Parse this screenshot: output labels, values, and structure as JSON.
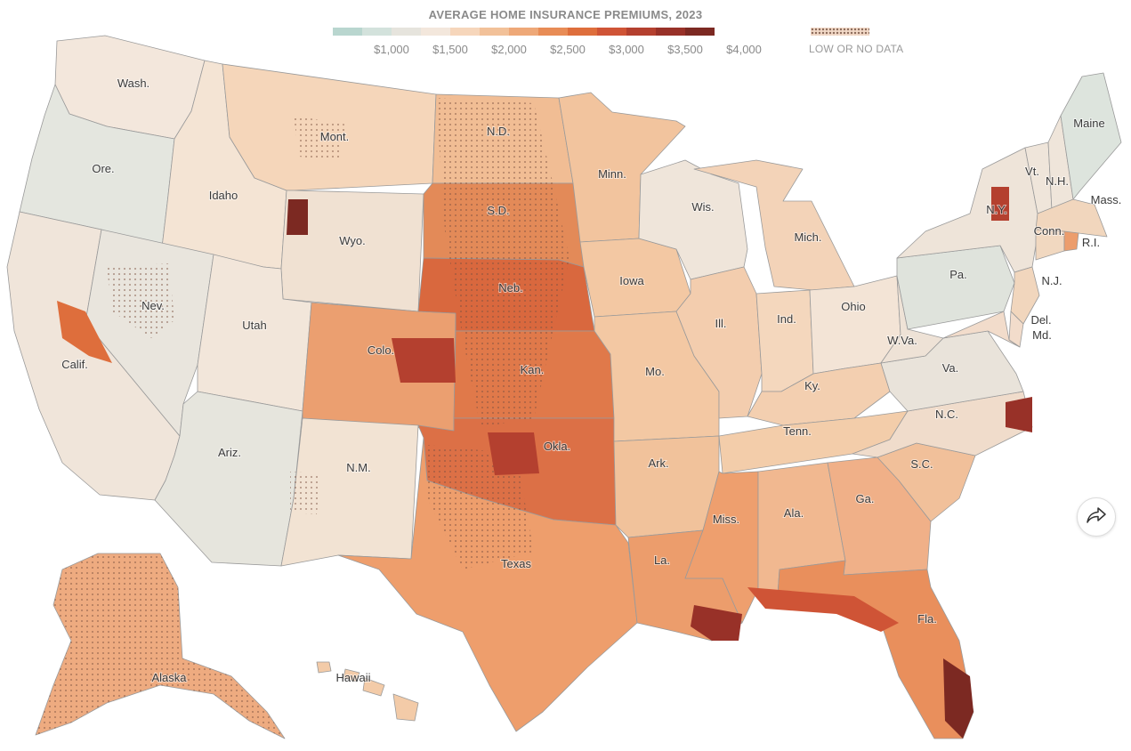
{
  "legend": {
    "title": "AVERAGE HOME INSURANCE PREMIUMS, 2023",
    "colors": [
      "#b9d6cf",
      "#d3e2dc",
      "#e6e4dd",
      "#f3e7dc",
      "#f6d6bb",
      "#f2c199",
      "#eea878",
      "#e88c56",
      "#de6e3c",
      "#cf5436",
      "#b4402f",
      "#983128",
      "#7c2922"
    ],
    "ticks": [
      {
        "label": "$1,000"
      },
      {
        "label": "$1,500"
      },
      {
        "label": "$2,000"
      },
      {
        "label": "$2,500"
      },
      {
        "label": "$3,000"
      },
      {
        "label": "$3,500"
      },
      {
        "label": "$4,000"
      }
    ],
    "nodata_label": "LOW OR NO DATA"
  },
  "states": [
    {
      "id": "wa",
      "label": "Wash.",
      "fill": "#f3e7dc"
    },
    {
      "id": "or",
      "label": "Ore.",
      "fill": "#e4e6df"
    },
    {
      "id": "ca",
      "label": "Calif.",
      "fill": "#f0e5da"
    },
    {
      "id": "id",
      "label": "Idaho",
      "fill": "#f4e4d4"
    },
    {
      "id": "nv",
      "label": "Nev.",
      "fill": "#e9e5dd"
    },
    {
      "id": "mt",
      "label": "Mont.",
      "fill": "#f5d6ba"
    },
    {
      "id": "wy",
      "label": "Wyo.",
      "fill": "#f0e1d2"
    },
    {
      "id": "ut",
      "label": "Utah",
      "fill": "#f2e6da"
    },
    {
      "id": "az",
      "label": "Ariz.",
      "fill": "#e6e5dd"
    },
    {
      "id": "co",
      "label": "Colo.",
      "fill": "#eb9f70"
    },
    {
      "id": "nm",
      "label": "N.M.",
      "fill": "#f2e3d3"
    },
    {
      "id": "nd",
      "label": "N.D.",
      "fill": "#f1bd94"
    },
    {
      "id": "sd",
      "label": "S.D.",
      "fill": "#e38a58"
    },
    {
      "id": "ne",
      "label": "Neb.",
      "fill": "#d9683e"
    },
    {
      "id": "ks",
      "label": "Kan.",
      "fill": "#e0794a"
    },
    {
      "id": "ok",
      "label": "Okla.",
      "fill": "#dc7046"
    },
    {
      "id": "tx",
      "label": "Texas",
      "fill": "#ee9e6c"
    },
    {
      "id": "mn",
      "label": "Minn.",
      "fill": "#f2c49e"
    },
    {
      "id": "ia",
      "label": "Iowa",
      "fill": "#f3c8a3"
    },
    {
      "id": "mo",
      "label": "Mo.",
      "fill": "#f3c8a3"
    },
    {
      "id": "ar",
      "label": "Ark.",
      "fill": "#f1c29b"
    },
    {
      "id": "la",
      "label": "La.",
      "fill": "#ec9d6c"
    },
    {
      "id": "wi",
      "label": "Wis.",
      "fill": "#efe5da"
    },
    {
      "id": "il",
      "label": "Ill.",
      "fill": "#f3cdae"
    },
    {
      "id": "mi",
      "label": "Mich.",
      "fill": "#f3d3b8"
    },
    {
      "id": "in",
      "label": "Ind.",
      "fill": "#f4d7bd"
    },
    {
      "id": "oh",
      "label": "Ohio",
      "fill": "#f3e4d6"
    },
    {
      "id": "ky",
      "label": "Ky.",
      "fill": "#f3cfb0"
    },
    {
      "id": "tn",
      "label": "Tenn.",
      "fill": "#f3cdaa"
    },
    {
      "id": "ms",
      "label": "Miss.",
      "fill": "#ee9f6e"
    },
    {
      "id": "al",
      "label": "Ala.",
      "fill": "#f1b890"
    },
    {
      "id": "ga",
      "label": "Ga.",
      "fill": "#f0b088"
    },
    {
      "id": "fl",
      "label": "Fla.",
      "fill": "#e98f5c"
    },
    {
      "id": "sc",
      "label": "S.C.",
      "fill": "#f1c09a"
    },
    {
      "id": "nc",
      "label": "N.C.",
      "fill": "#f0dccb"
    },
    {
      "id": "va",
      "label": "Va.",
      "fill": "#e9e3da"
    },
    {
      "id": "wv",
      "label": "W.Va.",
      "fill": "#eee2d6"
    },
    {
      "id": "pa",
      "label": "Pa.",
      "fill": "#dfe3dc"
    },
    {
      "id": "ny",
      "label": "N.Y.",
      "fill": "#eee4d9"
    },
    {
      "id": "nj",
      "label": "N.J.",
      "fill": "#f1d6bd"
    },
    {
      "id": "de",
      "label": "Del.",
      "fill": "#f2dccb"
    },
    {
      "id": "md",
      "label": "Md.",
      "fill": "#f2dccb"
    },
    {
      "id": "vt",
      "label": "Vt.",
      "fill": "#efe5da"
    },
    {
      "id": "nh",
      "label": "N.H.",
      "fill": "#efe5da"
    },
    {
      "id": "me",
      "label": "Maine",
      "fill": "#dde4dd"
    },
    {
      "id": "ma",
      "label": "Mass.",
      "fill": "#f1d6bd"
    },
    {
      "id": "ct",
      "label": "Conn.",
      "fill": "#f1d8c0"
    },
    {
      "id": "ri",
      "label": "R.I.",
      "fill": "#ec9d6c"
    },
    {
      "id": "ak",
      "label": "Alaska",
      "fill": "#eeab80"
    },
    {
      "id": "hi",
      "label": "Hawaii",
      "fill": "#f3cba8"
    }
  ],
  "share_icon": "share-arrow-icon"
}
